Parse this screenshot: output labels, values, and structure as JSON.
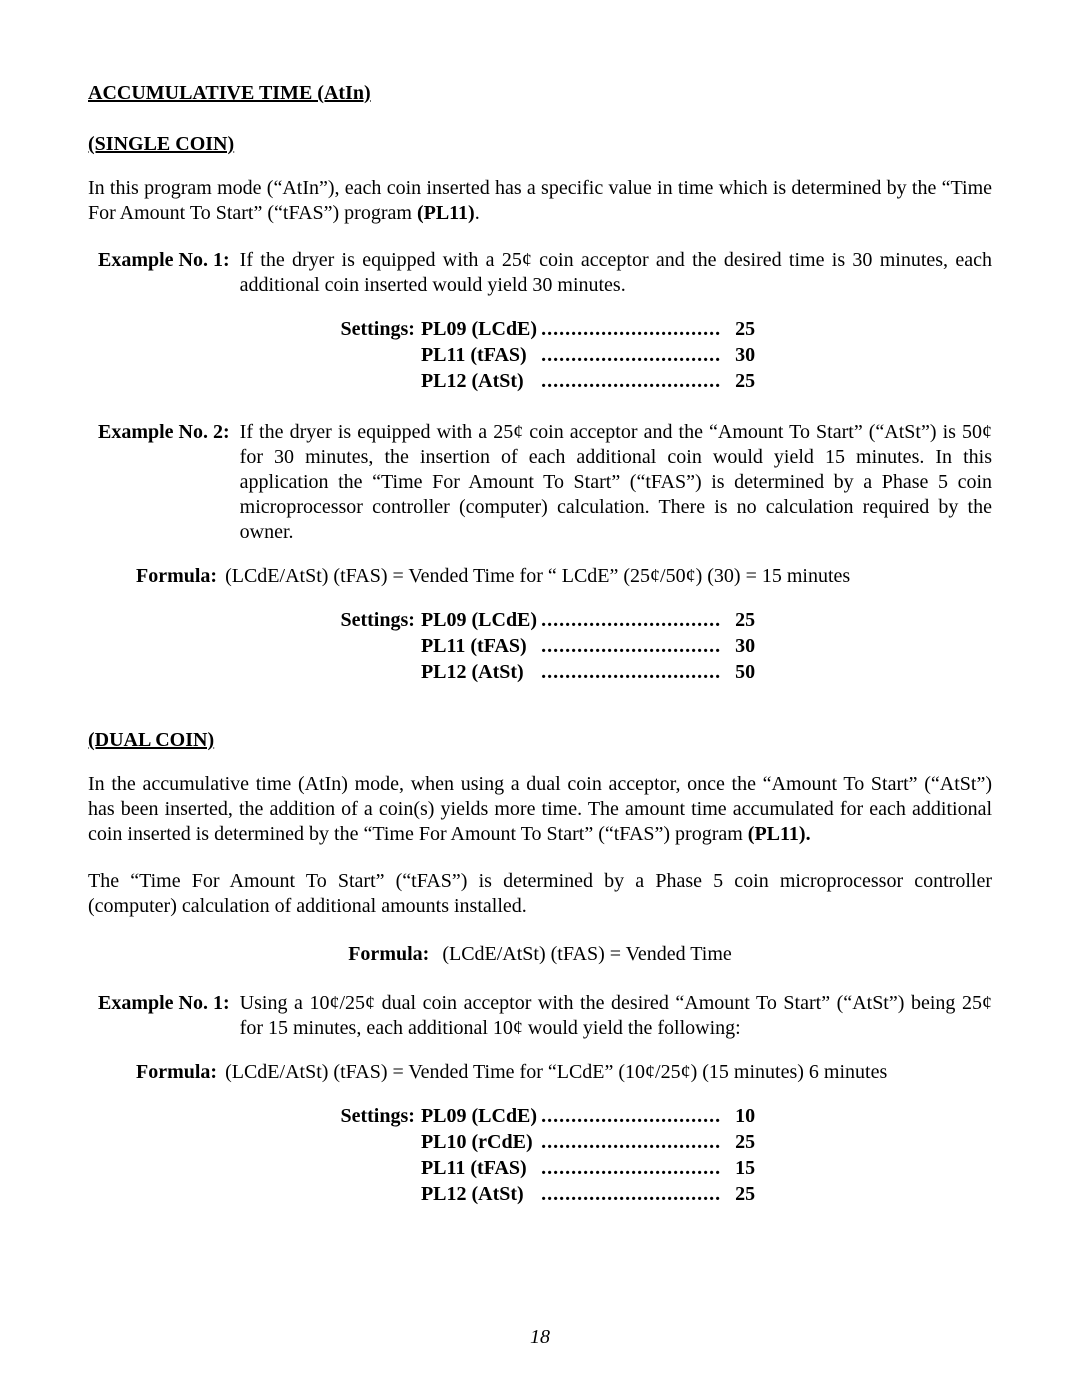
{
  "title_main": "ACCUMULATIVE TIME (AtIn)",
  "section_single": "(SINGLE COIN)",
  "section_dual": "(DUAL COIN)",
  "para_single_intro": "In this program mode (“AtIn”), each coin inserted has a specific value in time which is determined by the “Time For Amount To Start” (“tFAS”) program ",
  "para_single_intro_bold": "(PL11)",
  "example1_label": "Example No. 1:",
  "example1_body": "If the dryer is equipped with a 25¢ coin acceptor and the desired time is 30 minutes, each additional coin inserted would yield 30 minutes.",
  "settings_label": "Settings:",
  "settings1": [
    {
      "code": "PL09 (LCdE)",
      "val": "25"
    },
    {
      "code": "PL11 (tFAS)",
      "val": "30"
    },
    {
      "code": "PL12 (AtSt)",
      "val": "25"
    }
  ],
  "example2_label": "Example No. 2:",
  "example2_body": "If the dryer is equipped with a 25¢ coin acceptor and the “Amount To Start” (“AtSt”) is 50¢ for 30 minutes, the insertion of each additional coin would yield 15 minutes.  In this application the “Time For Amount To Start” (“tFAS”) is determined by a Phase 5 coin microprocessor controller (computer) calculation.  There is no calculation required by the owner.",
  "formula_label": "Formula:",
  "formula1_body": "(LCdE/AtSt) (tFAS) = Vended Time for “ LCdE” (25¢/50¢) (30) = 15 minutes",
  "settings2": [
    {
      "code": "PL09 (LCdE)",
      "val": "25"
    },
    {
      "code": "PL11 (tFAS)",
      "val": "30"
    },
    {
      "code": "PL12 (AtSt)",
      "val": "50"
    }
  ],
  "para_dual_1": "In the accumulative time (AtIn) mode, when using a dual coin acceptor, once the “Amount To Start” (“AtSt”) has been inserted, the addition of a coin(s) yields more time.  The amount time accumulated for each additional coin inserted is determined by the “Time For Amount To Start” (“tFAS”) program ",
  "para_dual_1_bold": "(PL11).",
  "para_dual_2": "The “Time For Amount To Start” (“tFAS”) is determined by a Phase 5 coin microprocessor controller (computer) calculation of additional amounts installed.",
  "formula_center_body": "(LCdE/AtSt) (tFAS) = Vended Time",
  "example3_label": "Example No. 1:",
  "example3_body": "Using a 10¢/25¢ dual coin acceptor with the desired “Amount To Start” (“AtSt”) being 25¢ for 15 minutes, each additional 10¢ would yield the following:",
  "formula3_body": "(LCdE/AtSt) (tFAS) = Vended Time for “LCdE” (10¢/25¢) (15 minutes) 6 minutes",
  "settings3": [
    {
      "code": "PL09 (LCdE)",
      "val": "10"
    },
    {
      "code": "PL10 (rCdE)",
      "val": "25"
    },
    {
      "code": "PL11 (tFAS)",
      "val": "15"
    },
    {
      "code": "PL12 (AtSt)",
      "val": "25"
    }
  ],
  "page_number": "18"
}
